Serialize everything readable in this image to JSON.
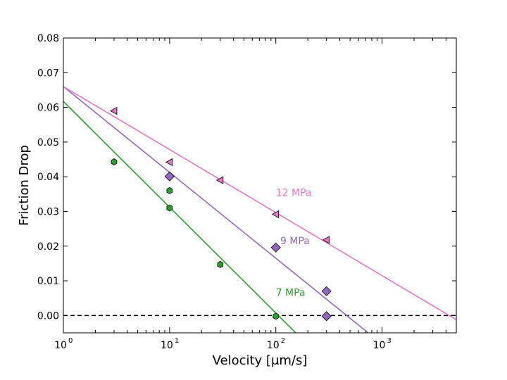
{
  "chart_data": {
    "type": "scatter",
    "xlabel": "Velocity [μm/s]",
    "ylabel": "Friction Drop",
    "xscale": "log",
    "xlim": [
      1,
      5000
    ],
    "ylim": [
      -0.005,
      0.08
    ],
    "x_ticks": [
      {
        "value": 1,
        "base": "10",
        "exp": "0"
      },
      {
        "value": 10,
        "base": "10",
        "exp": "1"
      },
      {
        "value": 100,
        "base": "10",
        "exp": "2"
      },
      {
        "value": 1000,
        "base": "10",
        "exp": "3"
      }
    ],
    "y_ticks": [
      "0.00",
      "0.01",
      "0.02",
      "0.03",
      "0.04",
      "0.05",
      "0.06",
      "0.07",
      "0.08"
    ],
    "reference_line": {
      "y": 0.0,
      "style": "dashed",
      "color": "#000000"
    },
    "series": [
      {
        "name": "7 MPa",
        "color": "#2ca02c",
        "marker": "hexagon",
        "points": [
          [
            3,
            0.0443
          ],
          [
            10,
            0.036
          ],
          [
            10,
            0.031
          ],
          [
            30,
            0.0147
          ],
          [
            100,
            -0.0002
          ]
        ],
        "fit": {
          "x": [
            1,
            160
          ],
          "y": [
            0.0617,
            -0.0055
          ]
        }
      },
      {
        "name": "9 MPa",
        "color": "#9467bd",
        "marker": "diamond",
        "points": [
          [
            10,
            0.0401
          ],
          [
            100,
            0.0196
          ],
          [
            300,
            0.007
          ],
          [
            300,
            -0.0002
          ]
        ],
        "fit": {
          "x": [
            1,
            740
          ],
          "y": [
            0.066,
            -0.005
          ]
        }
      },
      {
        "name": "12 MPa",
        "color": "#e377c2",
        "marker": "triangle-left",
        "points": [
          [
            3,
            0.059
          ],
          [
            10,
            0.0442
          ],
          [
            30,
            0.039
          ],
          [
            100,
            0.0292
          ],
          [
            300,
            0.0218
          ]
        ],
        "fit": {
          "x": [
            1,
            5000
          ],
          "y": [
            0.066,
            -0.0012
          ]
        }
      }
    ],
    "annotations": [
      {
        "text": "12 MPa",
        "x": 100,
        "y": 0.0345,
        "color": "#e377c2"
      },
      {
        "text": "9 MPa",
        "x": 110,
        "y": 0.0206,
        "color": "#9467bd"
      },
      {
        "text": "7 MPa",
        "x": 100,
        "y": 0.0057,
        "color": "#2ca02c"
      }
    ]
  }
}
